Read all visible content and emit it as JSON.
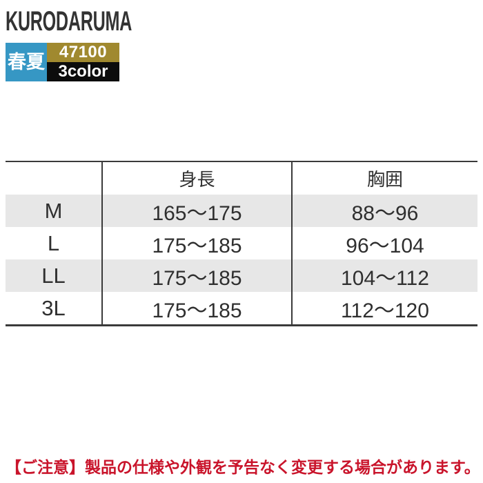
{
  "brand": {
    "logo": "KURODARUMA"
  },
  "badges": {
    "season_label": "春夏",
    "product_code": "47100",
    "color_count": "3color"
  },
  "palette": {
    "season_bg": "#3697c4",
    "product_code_bg": "#a0892f",
    "color_count_bg": "#0c0c0c",
    "logo_color": "#333333",
    "row_stripe": "#e7e7e7",
    "table_border": "#3a3a3a",
    "notice_color": "#c9142b"
  },
  "size_table": {
    "columns": [
      "",
      "身長",
      "胸囲"
    ],
    "rows": [
      {
        "size": "M",
        "height": "165〜175",
        "chest": "88〜96"
      },
      {
        "size": "L",
        "height": "175〜185",
        "chest": "96〜104"
      },
      {
        "size": "LL",
        "height": "175〜185",
        "chest": "104〜112"
      },
      {
        "size": "3L",
        "height": "175〜185",
        "chest": "112〜120"
      }
    ]
  },
  "notice": {
    "text": "【ご注意】製品の仕様や外観を予告なく変更する場合があります。"
  }
}
